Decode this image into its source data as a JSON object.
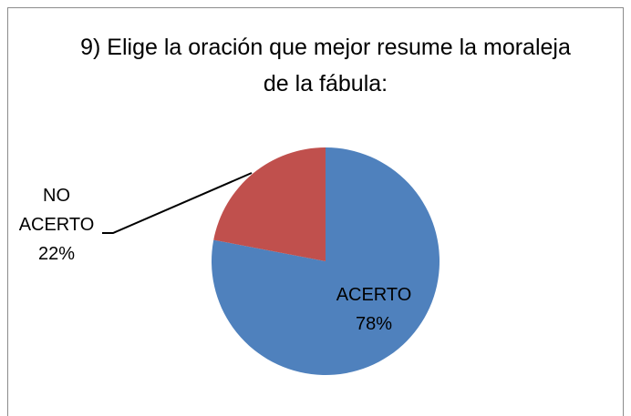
{
  "chart_data": {
    "type": "pie",
    "title": "9) Elige la oración que mejor resume la moraleja de la fábula:",
    "categories": [
      "ACERTO",
      "NO ACERTO"
    ],
    "values": [
      78,
      22
    ],
    "value_labels": [
      "78%",
      "22%"
    ],
    "colors": [
      "#4f81bd",
      "#c0504d"
    ]
  }
}
